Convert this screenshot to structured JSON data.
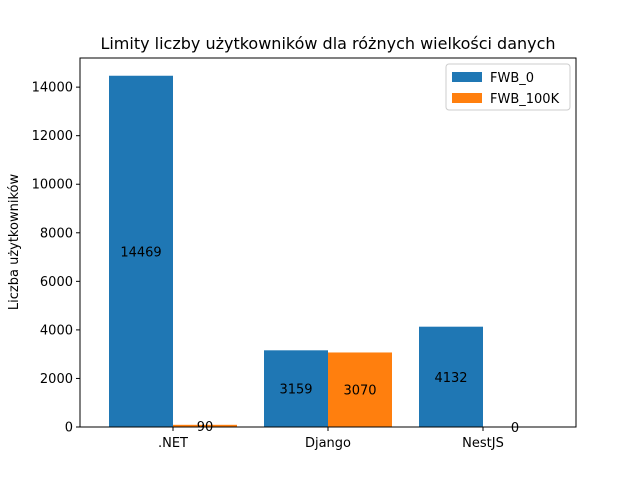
{
  "chart_data": {
    "type": "bar",
    "title": "Limity liczby użytkowników dla różnych wielkości danych",
    "xlabel": "",
    "ylabel": "Liczba użytkowników",
    "categories": [
      ".NET",
      "Django",
      "NestJS"
    ],
    "series": [
      {
        "name": "FWB_0",
        "values": [
          14469,
          3159,
          4132
        ],
        "color": "#1f77b4"
      },
      {
        "name": "FWB_100K",
        "values": [
          90,
          3070,
          0
        ],
        "color": "#ff7f0e"
      }
    ],
    "ylim": [
      0,
      15200
    ],
    "yticks": [
      0,
      2000,
      4000,
      6000,
      8000,
      10000,
      12000,
      14000
    ],
    "legend_position": "top-right",
    "grid": false
  }
}
